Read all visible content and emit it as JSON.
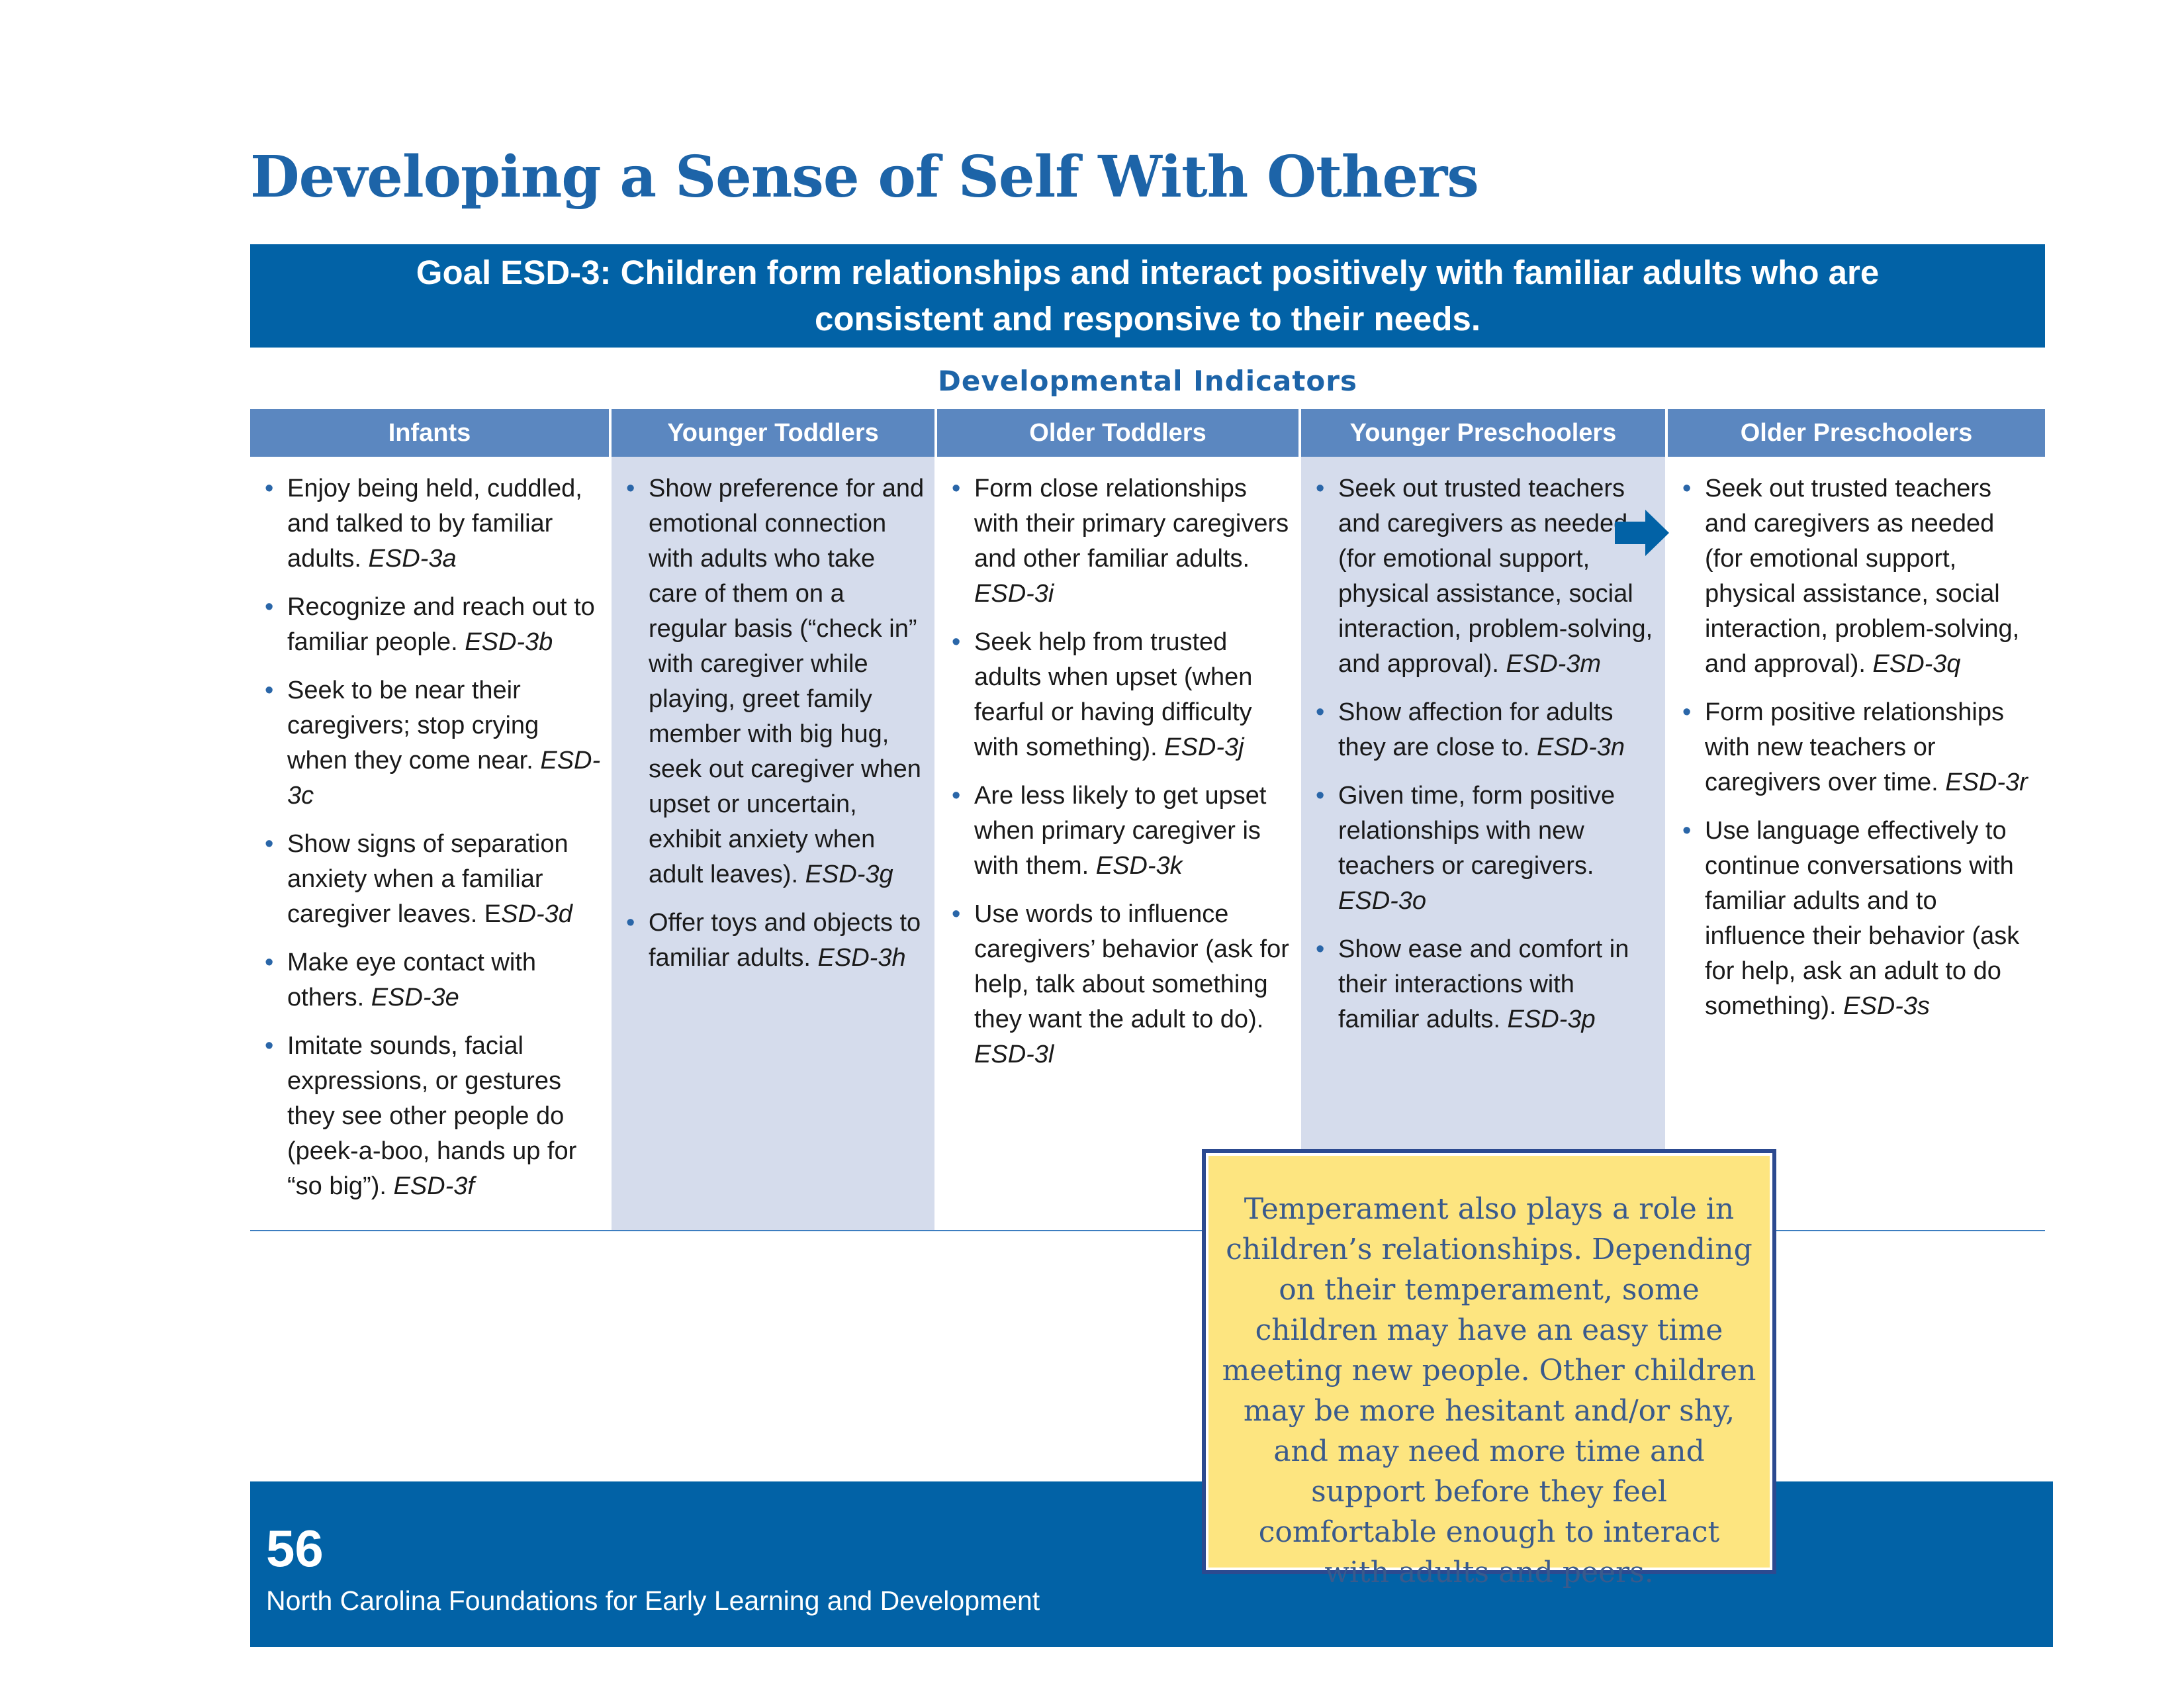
{
  "page_title": "Developing a Sense of Self With Others",
  "goal": {
    "line1": "Goal ESD-3: Children form relationships and interact positively with familiar adults who are",
    "line2": "consistent and responsive to their needs."
  },
  "section_heading": "Developmental Indicators",
  "columns": [
    {
      "header": "Infants",
      "items": [
        {
          "text": "Enjoy being held, cuddled, and talked to by familiar adults. ",
          "code": "ESD-3a"
        },
        {
          "text": "Recognize and reach out to familiar people. ",
          "code": "ESD-3b"
        },
        {
          "text": "Seek to be near their caregivers; stop crying when they come near. ",
          "code": "ESD-3c"
        },
        {
          "text": "Show signs of separation anxiety when a familiar caregiver leaves. E",
          "code": "SD-3d"
        },
        {
          "text": "Make eye contact with others. ",
          "code": "ESD-3e"
        },
        {
          "text": " Imitate sounds, facial expressions, or gestures they see other people do (peek-a-boo, hands up for “so big”). ",
          "code": "ESD-3f"
        }
      ]
    },
    {
      "header": "Younger Toddlers",
      "items": [
        {
          "text": "Show preference for and emotional connection with adults who take care of them on a regular basis (“check in” with caregiver while playing, greet family member with big hug, seek out caregiver when upset or uncertain, exhibit anxiety when adult leaves). ",
          "code": "ESD-3g"
        },
        {
          "text": "Offer toys and objects to familiar adults. ",
          "code": "ESD-3h"
        }
      ]
    },
    {
      "header": "Older Toddlers",
      "items": [
        {
          "text": "Form close relationships with their primary caregivers and other familiar adults. ",
          "code": "ESD-3i"
        },
        {
          "text": "Seek help from trusted adults when upset (when fearful or having difficulty with something). ",
          "code": "ESD-3j"
        },
        {
          "text": "Are less likely to get upset when primary caregiver is with them. ",
          "code": "ESD-3k"
        },
        {
          "text": "Use words to influence caregivers’ behavior (ask for help, talk about something they want the adult to do). ",
          "code": "ESD-3l"
        }
      ]
    },
    {
      "header": "Younger Preschoolers",
      "items": [
        {
          "text": "Seek out trusted teachers and caregivers as needed (for emotional support, physical assistance, social interaction, problem-solving, and approval). ",
          "code": "ESD-3m"
        },
        {
          "text": "Show affection for adults they are close to. ",
          "code": "ESD-3n"
        },
        {
          "text": "Given time, form positive relationships with new teachers or caregivers. ",
          "code": "ESD-3o"
        },
        {
          "text": "Show ease and comfort in their interactions with familiar adults. ",
          "code": "ESD-3p"
        }
      ]
    },
    {
      "header": "Older Preschoolers",
      "items": [
        {
          "text": "Seek out trusted teachers and caregivers as needed (for emotional support, physical assistance, social interaction, problem-solving, and approval). ",
          "code": "ESD-3q"
        },
        {
          "text": "Form positive relationships with new teachers or caregivers over time. ",
          "code": "ESD-3r"
        },
        {
          "text": "Use language effectively to continue conversations with familiar adults and to influence their behavior (ask for help, ask an adult to do something). ",
          "code": "ESD-3s"
        }
      ]
    }
  ],
  "callout_text": "Temperament also plays a role in children’s relationships. Depending on their temperament, some children may have an easy time meeting new people. Other children may be more hesitant and/or shy, and may need more time and support before they feel comfortable enough to interact with adults and peers.",
  "footer": {
    "page_number": "56",
    "publication": "North Carolina Foundations for Early Learning and Development"
  },
  "colors": {
    "brand_blue": "#0262a6",
    "title_blue": "#1d64a8",
    "header_blue": "#5b87c0",
    "shaded_column": "#d5dcec",
    "callout_yellow": "#fde580",
    "callout_border": "#2c4a90"
  },
  "icons": {
    "continuation_arrow": "right-arrow-icon"
  }
}
